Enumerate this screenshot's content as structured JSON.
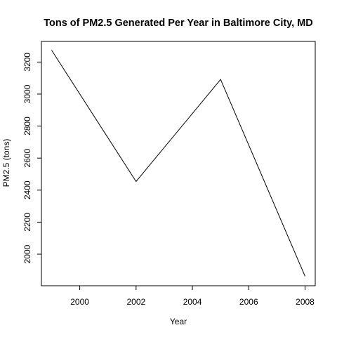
{
  "chart_data": {
    "type": "line",
    "title": "Tons of PM2.5 Generated Per Year in Baltimore City, MD",
    "xlabel": "Year",
    "ylabel": "PM2.5 (tons)",
    "x": [
      1999,
      2002,
      2005,
      2008
    ],
    "series": [
      {
        "values": [
          3274,
          2454,
          3091,
          1862
        ]
      }
    ],
    "xlim": [
      1999,
      2008
    ],
    "ylim": [
      1862,
      3274
    ],
    "x_ticks": [
      2000,
      2002,
      2004,
      2006,
      2008
    ],
    "x_tick_labels": [
      "2000",
      "2002",
      "2004",
      "2006",
      "2008"
    ],
    "y_ticks": [
      2000,
      2200,
      2400,
      2600,
      2800,
      3000,
      3200
    ],
    "y_tick_labels": [
      "2000",
      "2200",
      "2400",
      "2600",
      "2800",
      "3000",
      "3200"
    ],
    "grid": false,
    "colors": {
      "line": "#000000",
      "background": "#ffffff"
    }
  }
}
